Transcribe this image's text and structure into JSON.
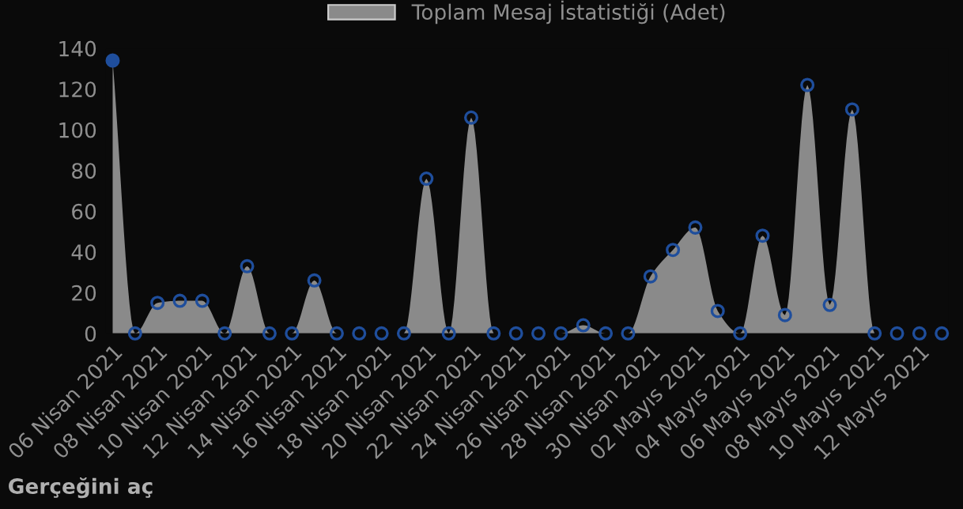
{
  "chart_data": {
    "type": "area",
    "categories": [
      "06 Nisan 2021",
      null,
      "08 Nisan 2021",
      null,
      "10 Nisan 2021",
      null,
      "12 Nisan 2021",
      null,
      "14 Nisan 2021",
      null,
      "16 Nisan 2021",
      null,
      "18 Nisan 2021",
      null,
      "20 Nisan 2021",
      null,
      "22 Nisan 2021",
      null,
      "24 Nisan 2021",
      null,
      "26 Nisan 2021",
      null,
      "28 Nisan 2021",
      null,
      "30 Nisan 2021",
      null,
      "02 Mayıs 2021",
      null,
      "04 Mayıs 2021",
      null,
      "06 Mayıs 2021",
      null,
      "08 Mayıs 2021",
      null,
      "10 Mayıs 2021",
      null,
      "12 Mayıs 2021",
      null
    ],
    "series": [
      {
        "name": "Toplam Mesaj İstatistiği (Adet)",
        "color": "#8a8a8a",
        "values": [
          134,
          0,
          15,
          16,
          16,
          0,
          33,
          0,
          0,
          26,
          0,
          0,
          0,
          0,
          76,
          0,
          106,
          0,
          0,
          0,
          0,
          4,
          0,
          0,
          28,
          41,
          52,
          11,
          0,
          48,
          9,
          122,
          14,
          110,
          0,
          0,
          0,
          0
        ]
      }
    ],
    "ylim": [
      0,
      140
    ],
    "yticks": [
      0,
      20,
      40,
      60,
      80,
      100,
      120,
      140
    ],
    "grid": false,
    "legend": "top",
    "marker": "circle",
    "annotations": [
      "Gerçeğini aç"
    ]
  }
}
